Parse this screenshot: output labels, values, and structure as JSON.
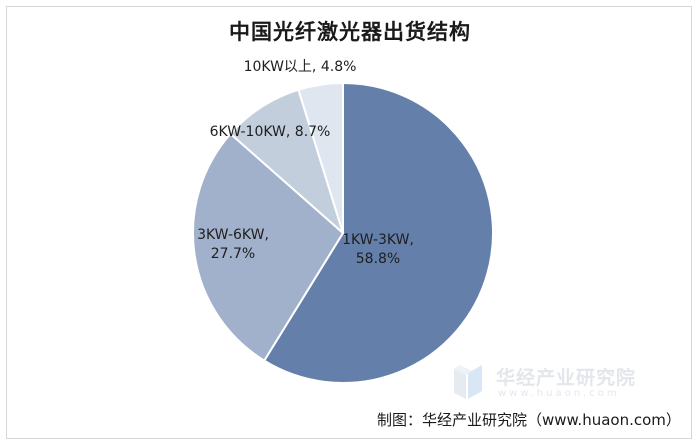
{
  "chart_data": {
    "type": "pie",
    "title": "中国光纤激光器出货结构",
    "slices": [
      {
        "name": "1KW-3KW",
        "value": 58.8,
        "label_name": "1KW-3KW,",
        "label_value": "58.8%",
        "color": "#6480aa"
      },
      {
        "name": "3KW-6KW",
        "value": 27.7,
        "label_name": "3KW-6KW,",
        "label_value": "27.7%",
        "color": "#a2b1cb"
      },
      {
        "name": "6KW-10KW",
        "value": 8.7,
        "label": "6KW-10KW, 8.7%",
        "color": "#c3cedd"
      },
      {
        "name": "10KW以上",
        "value": 4.8,
        "label": "10KW以上, 4.8%",
        "color": "#e0e6ef"
      }
    ],
    "legend": "none"
  },
  "watermark": {
    "name": "华经产业研究院",
    "url": "www.huaon.com"
  },
  "source_note": "制图：华经产业研究院（www.huaon.com）"
}
